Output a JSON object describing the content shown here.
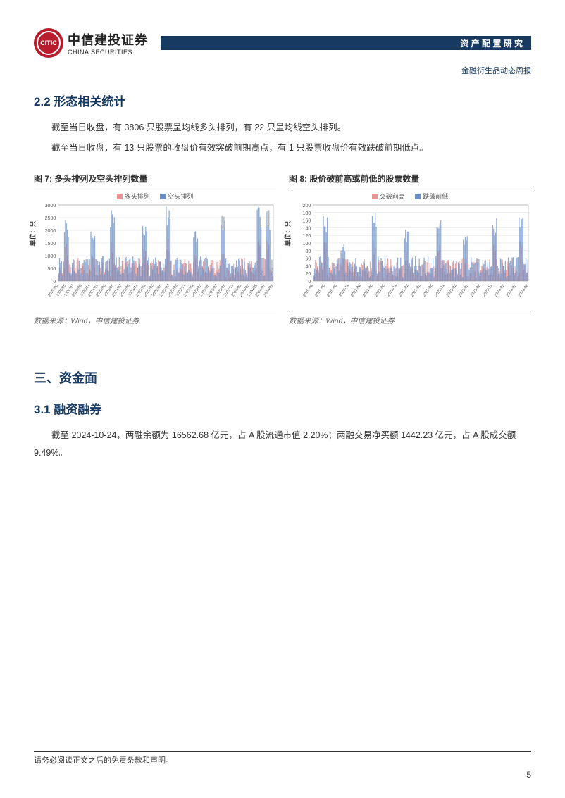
{
  "header": {
    "logo_cn": "中信建投证券",
    "logo_en": "CHINA SECURITIES",
    "bar_text": "资 产 配 置 研 究",
    "sub": "金融衍生品动态周报"
  },
  "section22": {
    "heading": "2.2 形态相关统计",
    "p1": "截至当日收盘，有 3806 只股票呈均线多头排列，有 22 只呈均线空头排列。",
    "p2": "截至当日收盘，有 13 只股票的收盘价有效突破前期高点，有 1 只股票收盘价有效跌破前期低点。"
  },
  "chart7": {
    "title": "图 7: 多头排列及空头排列数量",
    "legend": [
      {
        "label": "多头排列",
        "color": "#e89494"
      },
      {
        "label": "空头排列",
        "color": "#6b8fc4"
      }
    ],
    "ylabel": "单位：只",
    "ylim": [
      0,
      3000
    ],
    "ytick_step": 500,
    "x_labels": [
      "2020/03",
      "2020/05",
      "2020/07",
      "2020/09",
      "2020/11",
      "2021/01",
      "2021/03",
      "2021/05",
      "2021/07",
      "2021/09",
      "2021/11",
      "2022/01",
      "2022/03",
      "2022/05",
      "2022/07",
      "2022/09",
      "2022/11",
      "2023/01",
      "2023/03",
      "2023/05",
      "2023/07",
      "2023/09",
      "2023/11",
      "2024/01",
      "2024/03",
      "2024/05",
      "2024/07",
      "2024/09"
    ],
    "source": "数据来源：Wind，中信建投证券",
    "grid_color": "#dddddd",
    "series1_color": "#e89494",
    "series2_color": "#6b8fc4",
    "bg": "#ffffff"
  },
  "chart8": {
    "title": "图 8: 股价破前高或前低的股票数量",
    "legend": [
      {
        "label": "突破前高",
        "color": "#e89494"
      },
      {
        "label": "跌破前低",
        "color": "#6b8fc4"
      }
    ],
    "ylabel": "单位：只",
    "ylim": [
      0,
      200
    ],
    "ytick_step": 20,
    "x_labels": [
      "2020-02",
      "2020-05",
      "2020-08",
      "2020-11",
      "2021-02",
      "2021-05",
      "2021-08",
      "2021-11",
      "2022-02",
      "2022-05",
      "2022-08",
      "2022-11",
      "2023-02",
      "2023-05",
      "2023-08",
      "2023-11",
      "2024-02",
      "2024-05",
      "2024-08"
    ],
    "source": "数据来源：Wind，中信建投证券",
    "grid_color": "#dddddd",
    "series1_color": "#e89494",
    "series2_color": "#6b8fc4",
    "bg": "#ffffff"
  },
  "section3": {
    "heading": "三、资金面"
  },
  "section31": {
    "heading": "3.1 融资融券",
    "p1": "截至 2024-10-24，两融余额为 16562.68 亿元，占 A 股流通市值 2.20%；两融交易净买额 1442.23 亿元，占 A 股成交额 9.49%。"
  },
  "footer": {
    "disclaimer": "请务必阅读正文之后的免责条款和声明。",
    "page": "5"
  }
}
